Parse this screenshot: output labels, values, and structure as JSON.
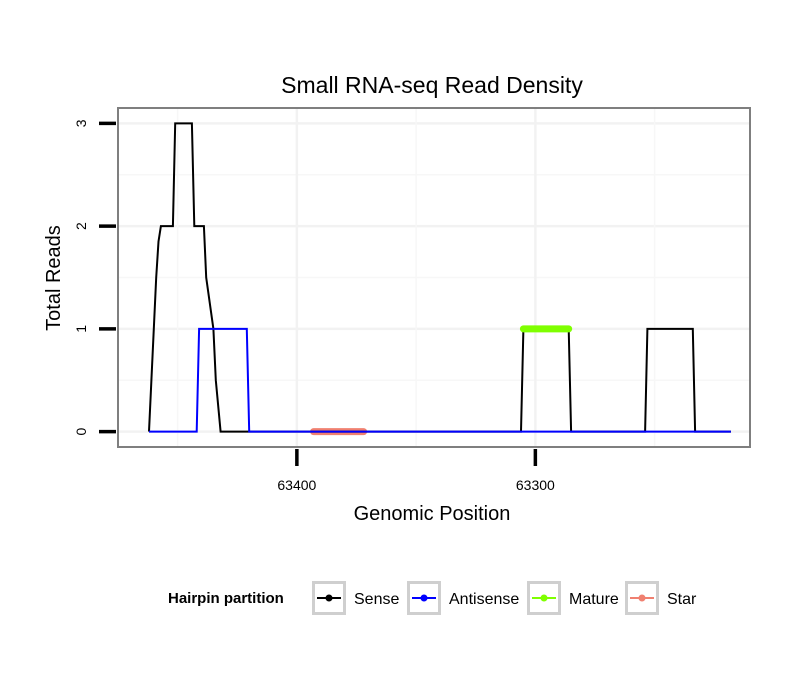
{
  "chart_data": {
    "type": "line",
    "title": "Small RNA-seq Read Density",
    "xlabel": "Genomic Position",
    "ylabel": "Total Reads",
    "x_reversed": true,
    "xlim": [
      63475,
      63210
    ],
    "ylim": [
      -0.15,
      3.15
    ],
    "x_ticks": [
      63400,
      63300
    ],
    "x_tick_labels": [
      "63400",
      "63300"
    ],
    "y_ticks": [
      0,
      1,
      2,
      3
    ],
    "y_tick_labels": [
      "0",
      "1",
      "2",
      "3"
    ],
    "grid": true,
    "legend": {
      "title": "Hairpin partition",
      "placement": "bottom",
      "entries": [
        "Sense",
        "Antisense",
        "Mature",
        "Star"
      ]
    },
    "series": [
      {
        "name": "Sense",
        "color": "#000000",
        "x": [
          63462,
          63461,
          63460,
          63459,
          63458,
          63457,
          63452,
          63451,
          63444,
          63443,
          63439,
          63438,
          63435,
          63434,
          63432,
          63306,
          63305,
          63286,
          63285,
          63254,
          63253,
          63234,
          63233,
          63218
        ],
        "y": [
          0,
          0.5,
          1,
          1.5,
          1.85,
          2,
          2,
          3,
          3,
          2,
          2,
          1.5,
          1,
          0.5,
          0,
          0,
          1,
          1,
          0,
          0,
          1,
          1,
          0,
          0
        ]
      },
      {
        "name": "Antisense",
        "color": "#0000ff",
        "x": [
          63462,
          63442,
          63441,
          63421,
          63420,
          63306,
          63305,
          63286,
          63285,
          63254,
          63253,
          63234,
          63233,
          63218
        ],
        "y": [
          0,
          0,
          1,
          1,
          0,
          0,
          0,
          0,
          0,
          0,
          0,
          0,
          0,
          0
        ]
      },
      {
        "name": "Mature",
        "color": "#7fff00",
        "x": [
          63305,
          63286
        ],
        "y": [
          1,
          1
        ]
      },
      {
        "name": "Star",
        "color": "#f08070",
        "x": [
          63393,
          63372
        ],
        "y": [
          0,
          0
        ]
      }
    ]
  }
}
